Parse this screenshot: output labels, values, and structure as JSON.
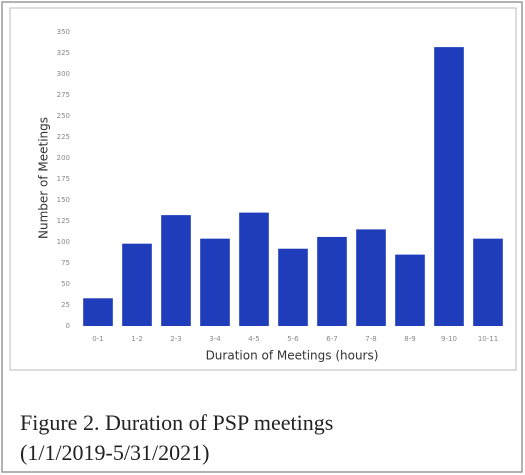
{
  "chart_data": {
    "type": "bar",
    "caption": [
      "Figure 2. Duration of PSP meetings",
      "(1/1/2019-5/31/2021)"
    ],
    "x_label": "Duration of Meetings (hours)",
    "y_label": "Number of Meetings",
    "categories": [
      "0-1",
      "1-2",
      "2-3",
      "3-4",
      "4-5",
      "5-6",
      "6-7",
      "7-8",
      "8-9",
      "9-10",
      "10-11"
    ],
    "values": [
      33,
      98,
      132,
      104,
      135,
      92,
      106,
      115,
      85,
      332,
      104
    ],
    "color": "#1f3dbb",
    "ylim": [
      0,
      350
    ],
    "yticks": [
      0,
      25,
      50,
      75,
      100,
      125,
      150,
      175,
      200,
      225,
      250,
      275,
      300,
      325,
      350
    ]
  }
}
